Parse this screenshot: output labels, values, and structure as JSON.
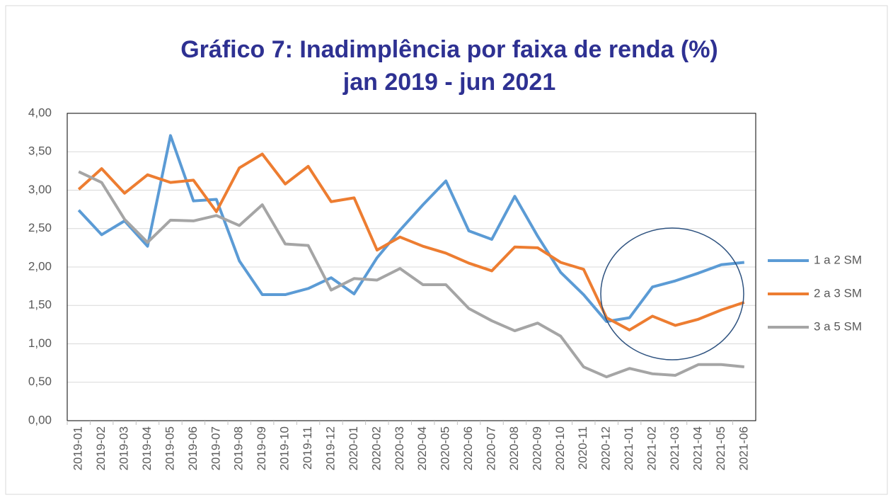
{
  "chart_data": {
    "type": "line",
    "title": "Gráfico 7: Inadimplência por faixa de renda (%)",
    "subtitle": "jan 2019 - jun 2021",
    "categories": [
      "2019-01",
      "2019-02",
      "2019-03",
      "2019-04",
      "2019-05",
      "2019-06",
      "2019-07",
      "2019-08",
      "2019-09",
      "2019-10",
      "2019-11",
      "2019-12",
      "2020-01",
      "2020-02",
      "2020-03",
      "2020-04",
      "2020-05",
      "2020-06",
      "2020-07",
      "2020-08",
      "2020-09",
      "2020-10",
      "2020-11",
      "2020-12",
      "2021-01",
      "2021-02",
      "2021-03",
      "2021-04",
      "2021-05",
      "2021-06"
    ],
    "series": [
      {
        "name": "1 a 2 SM",
        "color": "#5b9bd5",
        "values": [
          2.74,
          2.42,
          2.6,
          2.27,
          3.71,
          2.86,
          2.88,
          2.08,
          1.64,
          1.64,
          1.72,
          1.86,
          1.65,
          2.12,
          2.48,
          2.81,
          3.12,
          2.47,
          2.36,
          2.92,
          2.4,
          1.93,
          1.64,
          1.29,
          1.34,
          1.74,
          1.82,
          1.92,
          2.03,
          2.06
        ]
      },
      {
        "name": "2 a 3 SM",
        "color": "#ed7d31",
        "values": [
          3.01,
          3.28,
          2.96,
          3.2,
          3.1,
          3.13,
          2.72,
          3.29,
          3.47,
          3.08,
          3.31,
          2.85,
          2.9,
          2.22,
          2.39,
          2.27,
          2.18,
          2.05,
          1.95,
          2.26,
          2.25,
          2.06,
          1.97,
          1.34,
          1.18,
          1.36,
          1.24,
          1.32,
          1.44,
          1.54
        ]
      },
      {
        "name": "3 a 5 SM",
        "color": "#a5a5a5",
        "values": [
          3.24,
          3.1,
          2.62,
          2.32,
          2.61,
          2.6,
          2.67,
          2.54,
          2.81,
          2.3,
          2.28,
          1.7,
          1.85,
          1.83,
          1.98,
          1.77,
          1.77,
          1.46,
          1.3,
          1.17,
          1.27,
          1.1,
          0.7,
          0.57,
          0.68,
          0.61,
          0.59,
          0.73,
          0.73,
          0.7
        ]
      }
    ],
    "ylim": [
      0,
      4
    ],
    "yticks": [
      {
        "value": 0,
        "label": "0,00"
      },
      {
        "value": 0.5,
        "label": "0,50"
      },
      {
        "value": 1,
        "label": "1,00"
      },
      {
        "value": 1.5,
        "label": "1,50"
      },
      {
        "value": 2,
        "label": "2,00"
      },
      {
        "value": 2.5,
        "label": "2,50"
      },
      {
        "value": 3,
        "label": "3,00"
      },
      {
        "value": 3.5,
        "label": "3,50"
      },
      {
        "value": 4,
        "label": "4,00"
      }
    ],
    "grid": true,
    "legend": "right"
  }
}
